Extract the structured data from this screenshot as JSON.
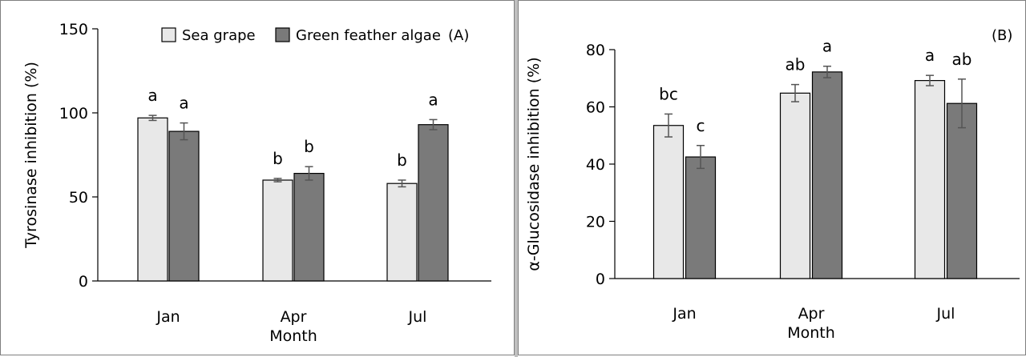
{
  "colors": {
    "sea_grape": "#e8e8e8",
    "green_feather_algae": "#7a7a7a",
    "axis": "#000000",
    "error_bar": "#555555"
  },
  "chart_data": [
    {
      "type": "bar",
      "panel_label": "(A)",
      "categories": [
        "Jan",
        "Apr",
        "Jul"
      ],
      "xlabel": "Month",
      "ylabel": "Tyrosinase inhibition (%)",
      "ylim": [
        0,
        150
      ],
      "yticks": [
        0,
        50,
        100,
        150
      ],
      "grid": false,
      "legend_position": "top-right",
      "series": [
        {
          "name": "Sea grape",
          "values": [
            97,
            60,
            58
          ],
          "errors": [
            1.5,
            1,
            2
          ],
          "letters": [
            "a",
            "b",
            "b"
          ]
        },
        {
          "name": "Green feather algae",
          "values": [
            89,
            64,
            93
          ],
          "errors": [
            5,
            4,
            3
          ],
          "letters": [
            "a",
            "b",
            "a"
          ]
        }
      ]
    },
    {
      "type": "bar",
      "panel_label": "(B)",
      "categories": [
        "Jan",
        "Apr",
        "Jul"
      ],
      "xlabel": "Month",
      "ylabel": "α-Glucosidase inhibition (%)",
      "ylim": [
        0,
        80
      ],
      "yticks": [
        0,
        20,
        40,
        60,
        80
      ],
      "grid": false,
      "series": [
        {
          "name": "Sea grape",
          "values": [
            53.5,
            64.8,
            69.2
          ],
          "errors": [
            4,
            3,
            1.8
          ],
          "letters": [
            "bc",
            "ab",
            "a"
          ]
        },
        {
          "name": "Green feather algae",
          "values": [
            42.5,
            72.2,
            61.2
          ],
          "errors": [
            4,
            2,
            8.5
          ],
          "letters": [
            "c",
            "a",
            "ab"
          ]
        }
      ]
    }
  ]
}
